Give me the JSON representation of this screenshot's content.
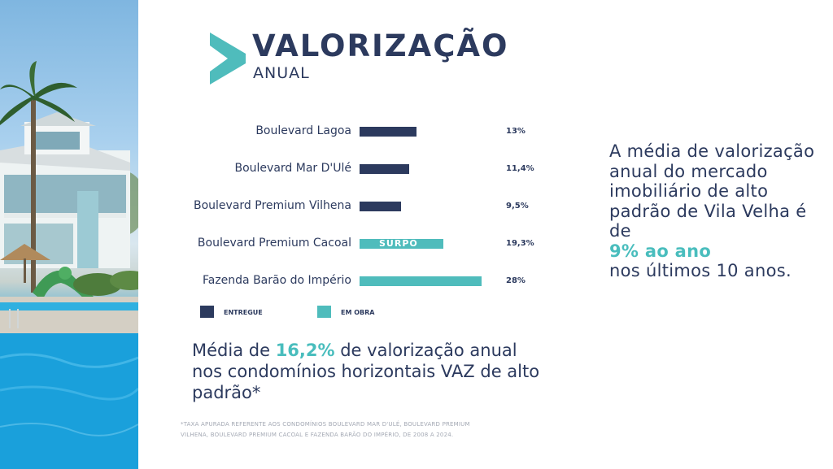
{
  "header": {
    "title": "VALORIZAÇÃO",
    "subtitle": "ANUAL"
  },
  "colors": {
    "entregue": "#2c3a5e",
    "em_obra": "#4fbcbc",
    "text": "#2c3a5e",
    "highlight": "#49bdbd"
  },
  "chart_data": {
    "type": "bar",
    "orientation": "horizontal",
    "categories": [
      "Boulevard Lagoa",
      "Boulevard Mar D'Ulé",
      "Boulevard Premium Vilhena",
      "Boulevard Premium Cacoal",
      "Fazenda Barão do Império"
    ],
    "values": [
      13,
      11.4,
      9.5,
      19.3,
      28
    ],
    "value_labels": [
      "13%",
      "11,4%",
      "9,5%",
      "19,3%",
      "28%"
    ],
    "status": [
      "ENTREGUE",
      "ENTREGUE",
      "ENTREGUE",
      "EM OBRA",
      "EM OBRA"
    ],
    "bar_overlay_text": [
      "",
      "",
      "",
      "SURPO",
      ""
    ],
    "legend": [
      {
        "label": "ENTREGUE",
        "color": "#2c3a5e"
      },
      {
        "label": "EM OBRA",
        "color": "#4fbcbc"
      }
    ],
    "xlim": [
      0,
      28
    ],
    "grid": false,
    "legend_position": "bottom-left"
  },
  "summary": {
    "prefix": "Média de ",
    "highlight": "16,2%",
    "suffix": " de valorização anual nos condomínios horizontais VAZ de alto padrão*"
  },
  "footnote": "*TAXA APURADA REFERENTE AOS CONDOMÍNIOS BOULEVARD MAR D'ULÉ, BOULEVARD PREMIUM VILHENA, BOULEVARD PREMIUM CACOAL E FAZENDA BARÃO DO IMPÉRIO, DE 2008 A 2024.",
  "right_text": {
    "prefix": "A média de valorização anual do mercado imobiliário de alto padrão de Vila Velha é de",
    "highlight": "9% ao ano",
    "suffix": "nos últimos 10 anos."
  }
}
